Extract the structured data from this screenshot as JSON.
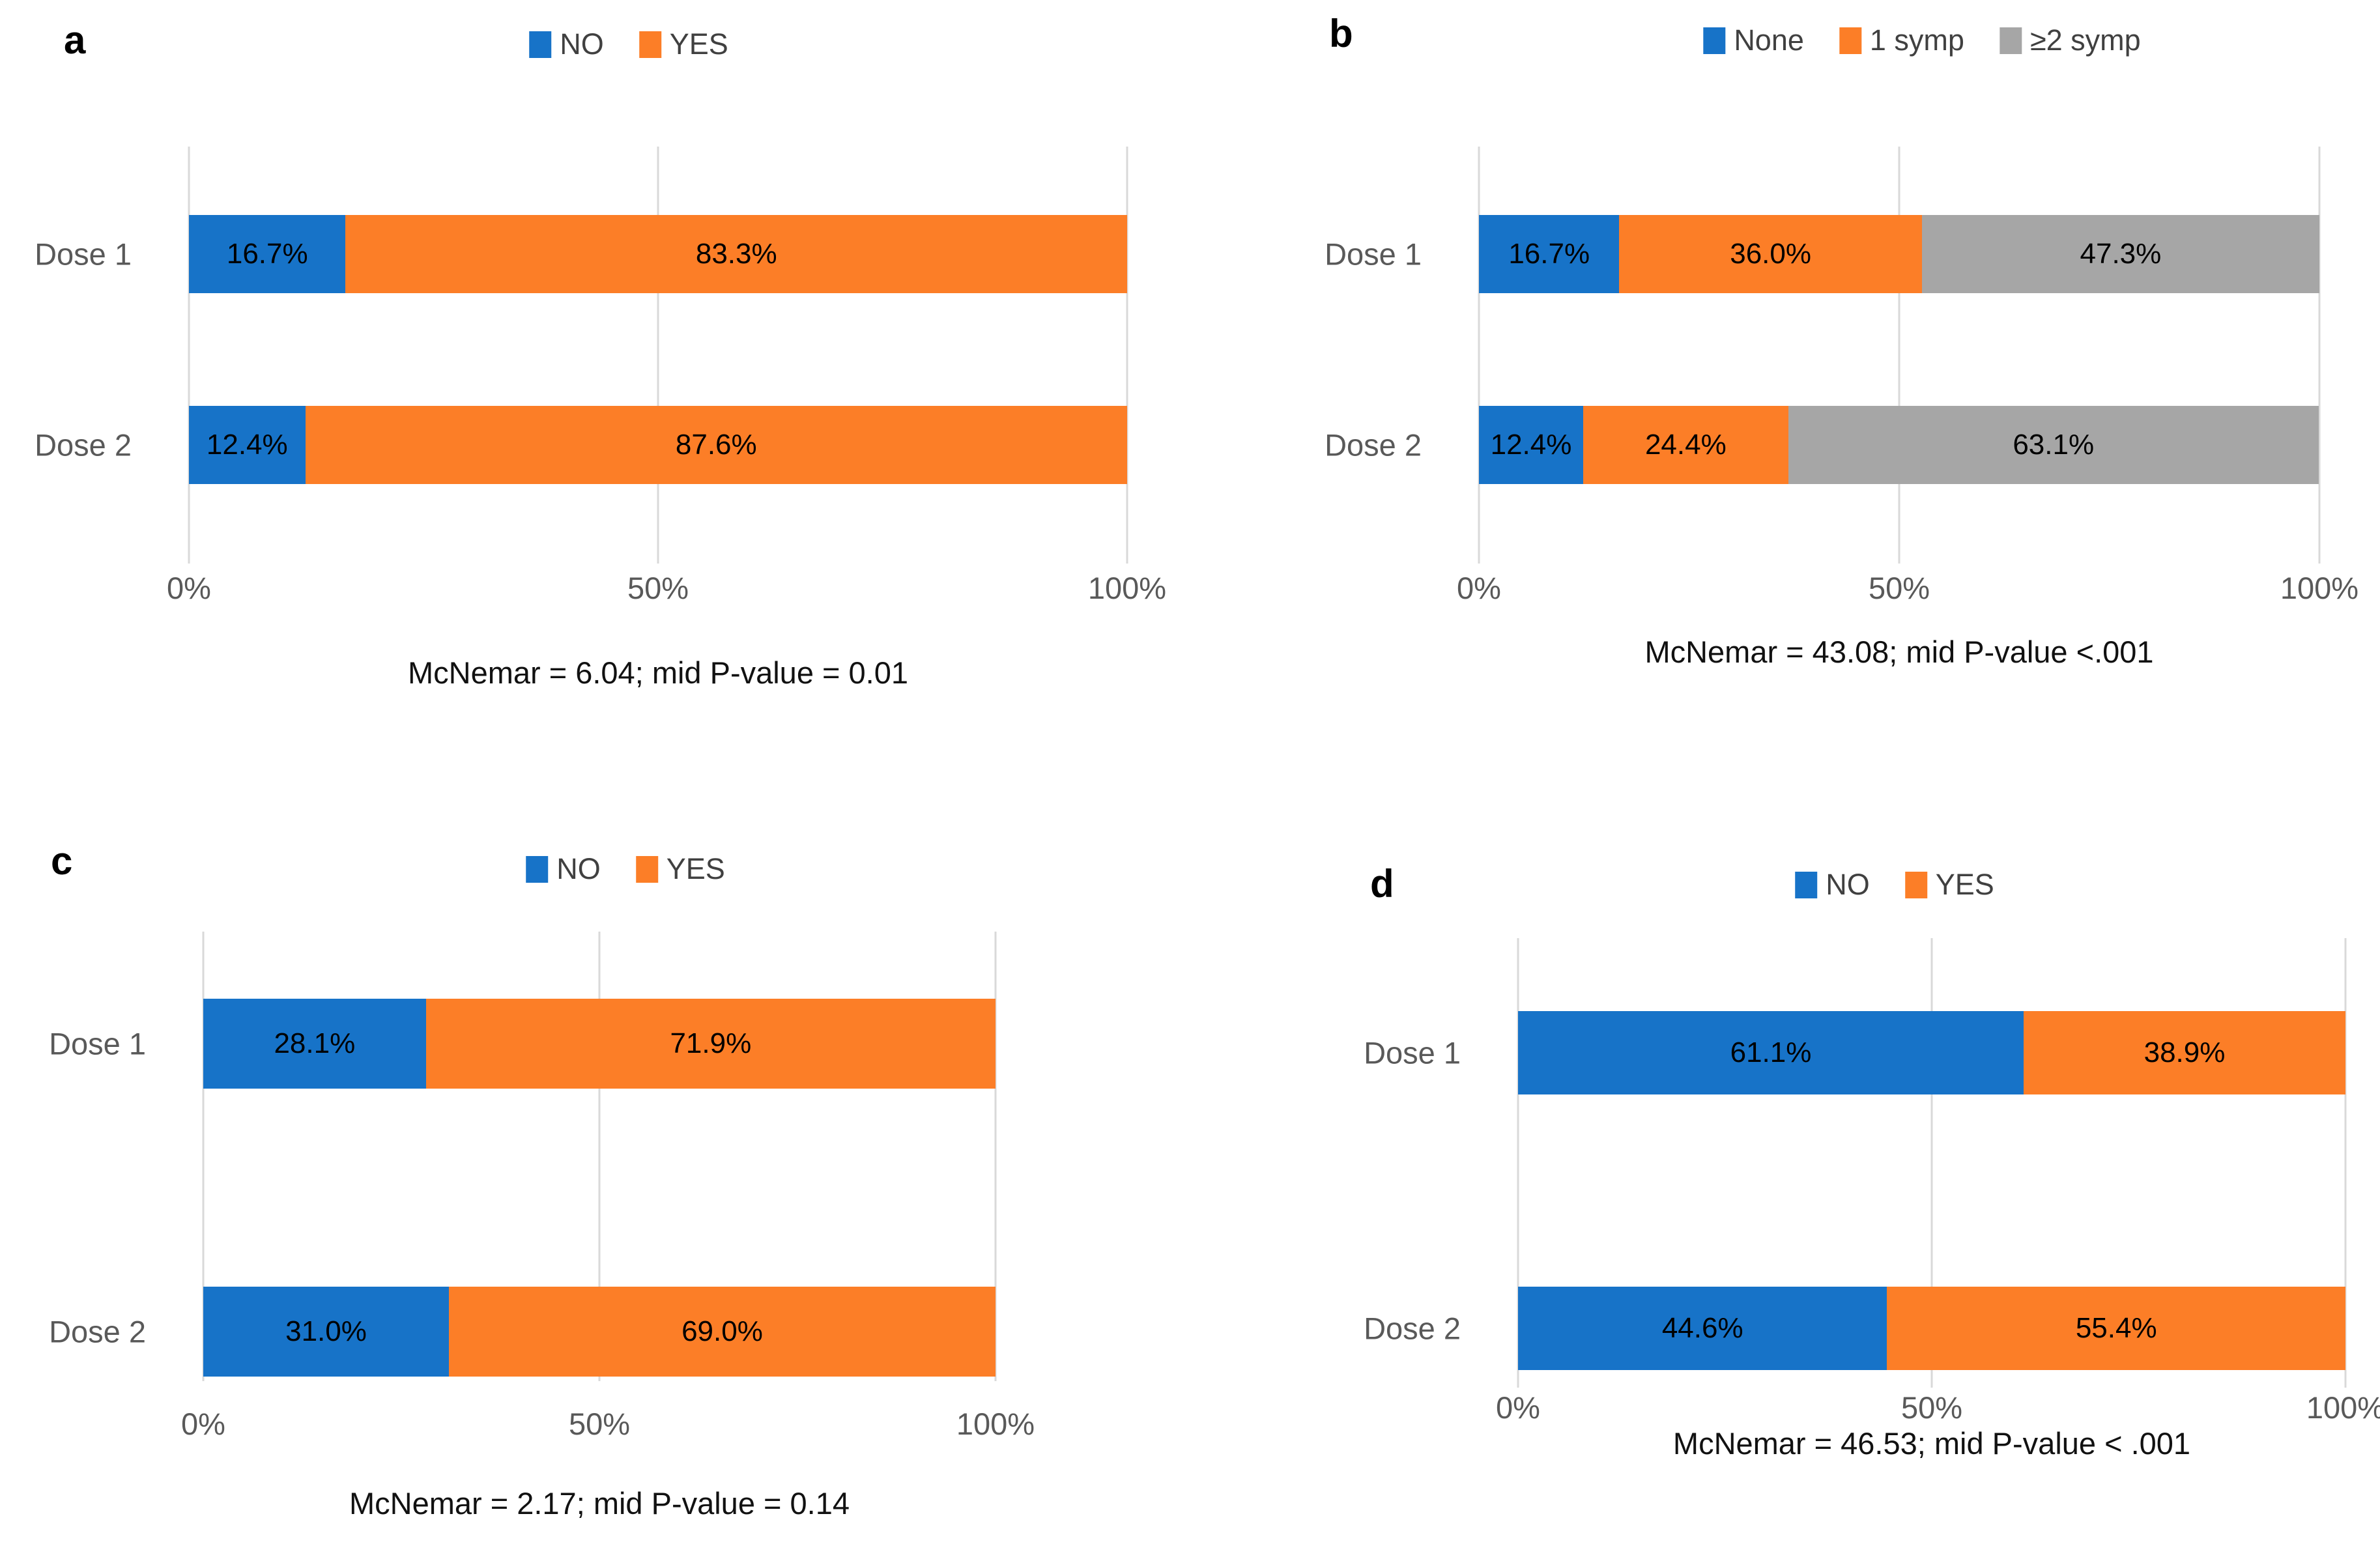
{
  "figure": {
    "background": "#FFFFFF",
    "panels": [
      "a",
      "b",
      "c",
      "d"
    ]
  },
  "colors": {
    "blue": "#1773C8",
    "orange": "#FC7E27",
    "gray": "#A6A6A6",
    "gridline": "#D9D9D9",
    "axis_text": "#595959",
    "legend_text": "#404040",
    "value_text": "#000000"
  },
  "chart_data": [
    {
      "panel_label": "a",
      "type": "bar",
      "subtype": "horizontal_stacked_100pct",
      "categories": [
        "Dose 1",
        "Dose 2"
      ],
      "series": [
        {
          "name": "NO",
          "color": "#1773C8",
          "values": [
            16.7,
            12.4
          ],
          "labels": [
            "16.7%",
            "12.4%"
          ]
        },
        {
          "name": "YES",
          "color": "#FC7E27",
          "values": [
            83.3,
            87.6
          ],
          "labels": [
            "83.3%",
            "87.6%"
          ]
        }
      ],
      "x_ticks": [
        "0%",
        "50%",
        "100%"
      ],
      "xlim": [
        0,
        100
      ],
      "grid": "vertical",
      "legend_position": "top-center",
      "caption": "McNemar = 6.04; mid P-value = 0.01"
    },
    {
      "panel_label": "b",
      "type": "bar",
      "subtype": "horizontal_stacked_100pct",
      "categories": [
        "Dose 1",
        "Dose 2"
      ],
      "series": [
        {
          "name": "None",
          "color": "#1773C8",
          "values": [
            16.7,
            12.4
          ],
          "labels": [
            "16.7%",
            "12.4%"
          ]
        },
        {
          "name": "1 symp",
          "color": "#FC7E27",
          "values": [
            36.0,
            24.4
          ],
          "labels": [
            "36.0%",
            "24.4%"
          ]
        },
        {
          "name": "≥2 symp",
          "color": "#A6A6A6",
          "values": [
            47.3,
            63.1
          ],
          "labels": [
            "47.3%",
            "63.1%"
          ]
        }
      ],
      "x_ticks": [
        "0%",
        "50%",
        "100%"
      ],
      "xlim": [
        0,
        100
      ],
      "grid": "vertical",
      "legend_position": "top-center",
      "caption": "McNemar = 43.08; mid P-value <.001"
    },
    {
      "panel_label": "c",
      "type": "bar",
      "subtype": "horizontal_stacked_100pct",
      "categories": [
        "Dose 1",
        "Dose 2"
      ],
      "series": [
        {
          "name": "NO",
          "color": "#1773C8",
          "values": [
            28.1,
            31.0
          ],
          "labels": [
            "28.1%",
            "31.0%"
          ]
        },
        {
          "name": "YES",
          "color": "#FC7E27",
          "values": [
            71.9,
            69.0
          ],
          "labels": [
            "71.9%",
            "69.0%"
          ]
        }
      ],
      "x_ticks": [
        "0%",
        "50%",
        "100%"
      ],
      "xlim": [
        0,
        100
      ],
      "grid": "vertical",
      "legend_position": "top-center",
      "caption": "McNemar = 2.17; mid P-value = 0.14"
    },
    {
      "panel_label": "d",
      "type": "bar",
      "subtype": "horizontal_stacked_100pct",
      "categories": [
        "Dose 1",
        "Dose 2"
      ],
      "series": [
        {
          "name": "NO",
          "color": "#1773C8",
          "values": [
            61.1,
            44.6
          ],
          "labels": [
            "61.1%",
            "44.6%"
          ]
        },
        {
          "name": "YES",
          "color": "#FC7E27",
          "values": [
            38.9,
            55.4
          ],
          "labels": [
            "38.9%",
            "55.4%"
          ]
        }
      ],
      "x_ticks": [
        "0%",
        "50%",
        "100%"
      ],
      "xlim": [
        0,
        100
      ],
      "grid": "vertical",
      "legend_position": "top-center",
      "caption": "McNemar = 46.53; mid P-value < .001"
    }
  ]
}
